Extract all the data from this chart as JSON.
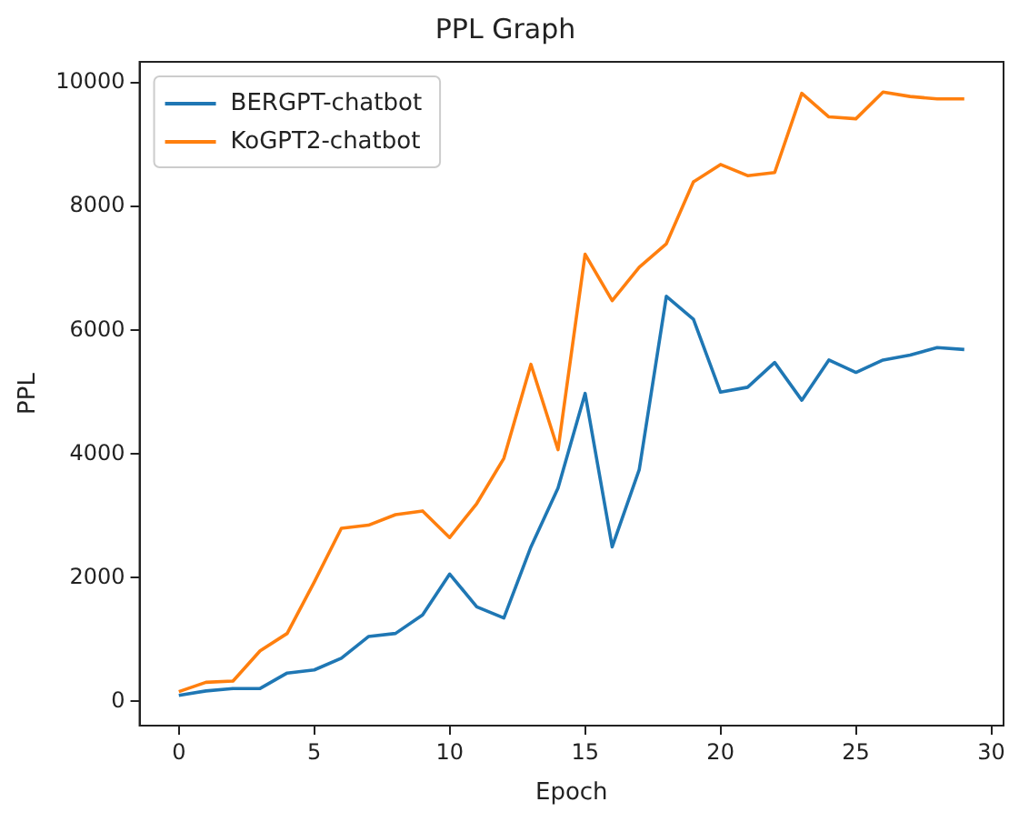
{
  "chart_data": {
    "type": "line",
    "title": "PPL Graph",
    "xlabel": "Epoch",
    "ylabel": "PPL",
    "x": [
      0,
      1,
      2,
      3,
      4,
      5,
      6,
      7,
      8,
      9,
      10,
      11,
      12,
      13,
      14,
      15,
      16,
      17,
      18,
      19,
      20,
      21,
      22,
      23,
      24,
      25,
      26,
      27,
      28,
      29
    ],
    "series": [
      {
        "name": "BERGPT-chatbot",
        "color": "#1f77b4",
        "values": [
          100,
          170,
          210,
          210,
          460,
          510,
          700,
          1050,
          1100,
          1400,
          2060,
          1530,
          1350,
          2500,
          3450,
          4980,
          2500,
          3750,
          6550,
          6180,
          5000,
          5080,
          5480,
          4870,
          5520,
          5320,
          5520,
          5600,
          5720,
          5690
        ]
      },
      {
        "name": "KoGPT2-chatbot",
        "color": "#ff7f0e",
        "values": [
          160,
          310,
          330,
          820,
          1100,
          1930,
          2800,
          2850,
          3020,
          3080,
          2650,
          3200,
          3930,
          5450,
          4070,
          7230,
          6480,
          7020,
          7400,
          8400,
          8680,
          8500,
          8550,
          9830,
          9450,
          9420,
          9850,
          9780,
          9740,
          9740
        ]
      }
    ],
    "xlim": [
      -1.45,
      30.45
    ],
    "xticks": [
      0,
      5,
      10,
      15,
      20,
      25,
      30
    ],
    "ylim": [
      -390,
      10340
    ],
    "yticks": [
      0,
      2000,
      4000,
      6000,
      8000,
      10000
    ],
    "grid": false,
    "legend": "top left",
    "marker": "none",
    "line_style": "solid"
  }
}
